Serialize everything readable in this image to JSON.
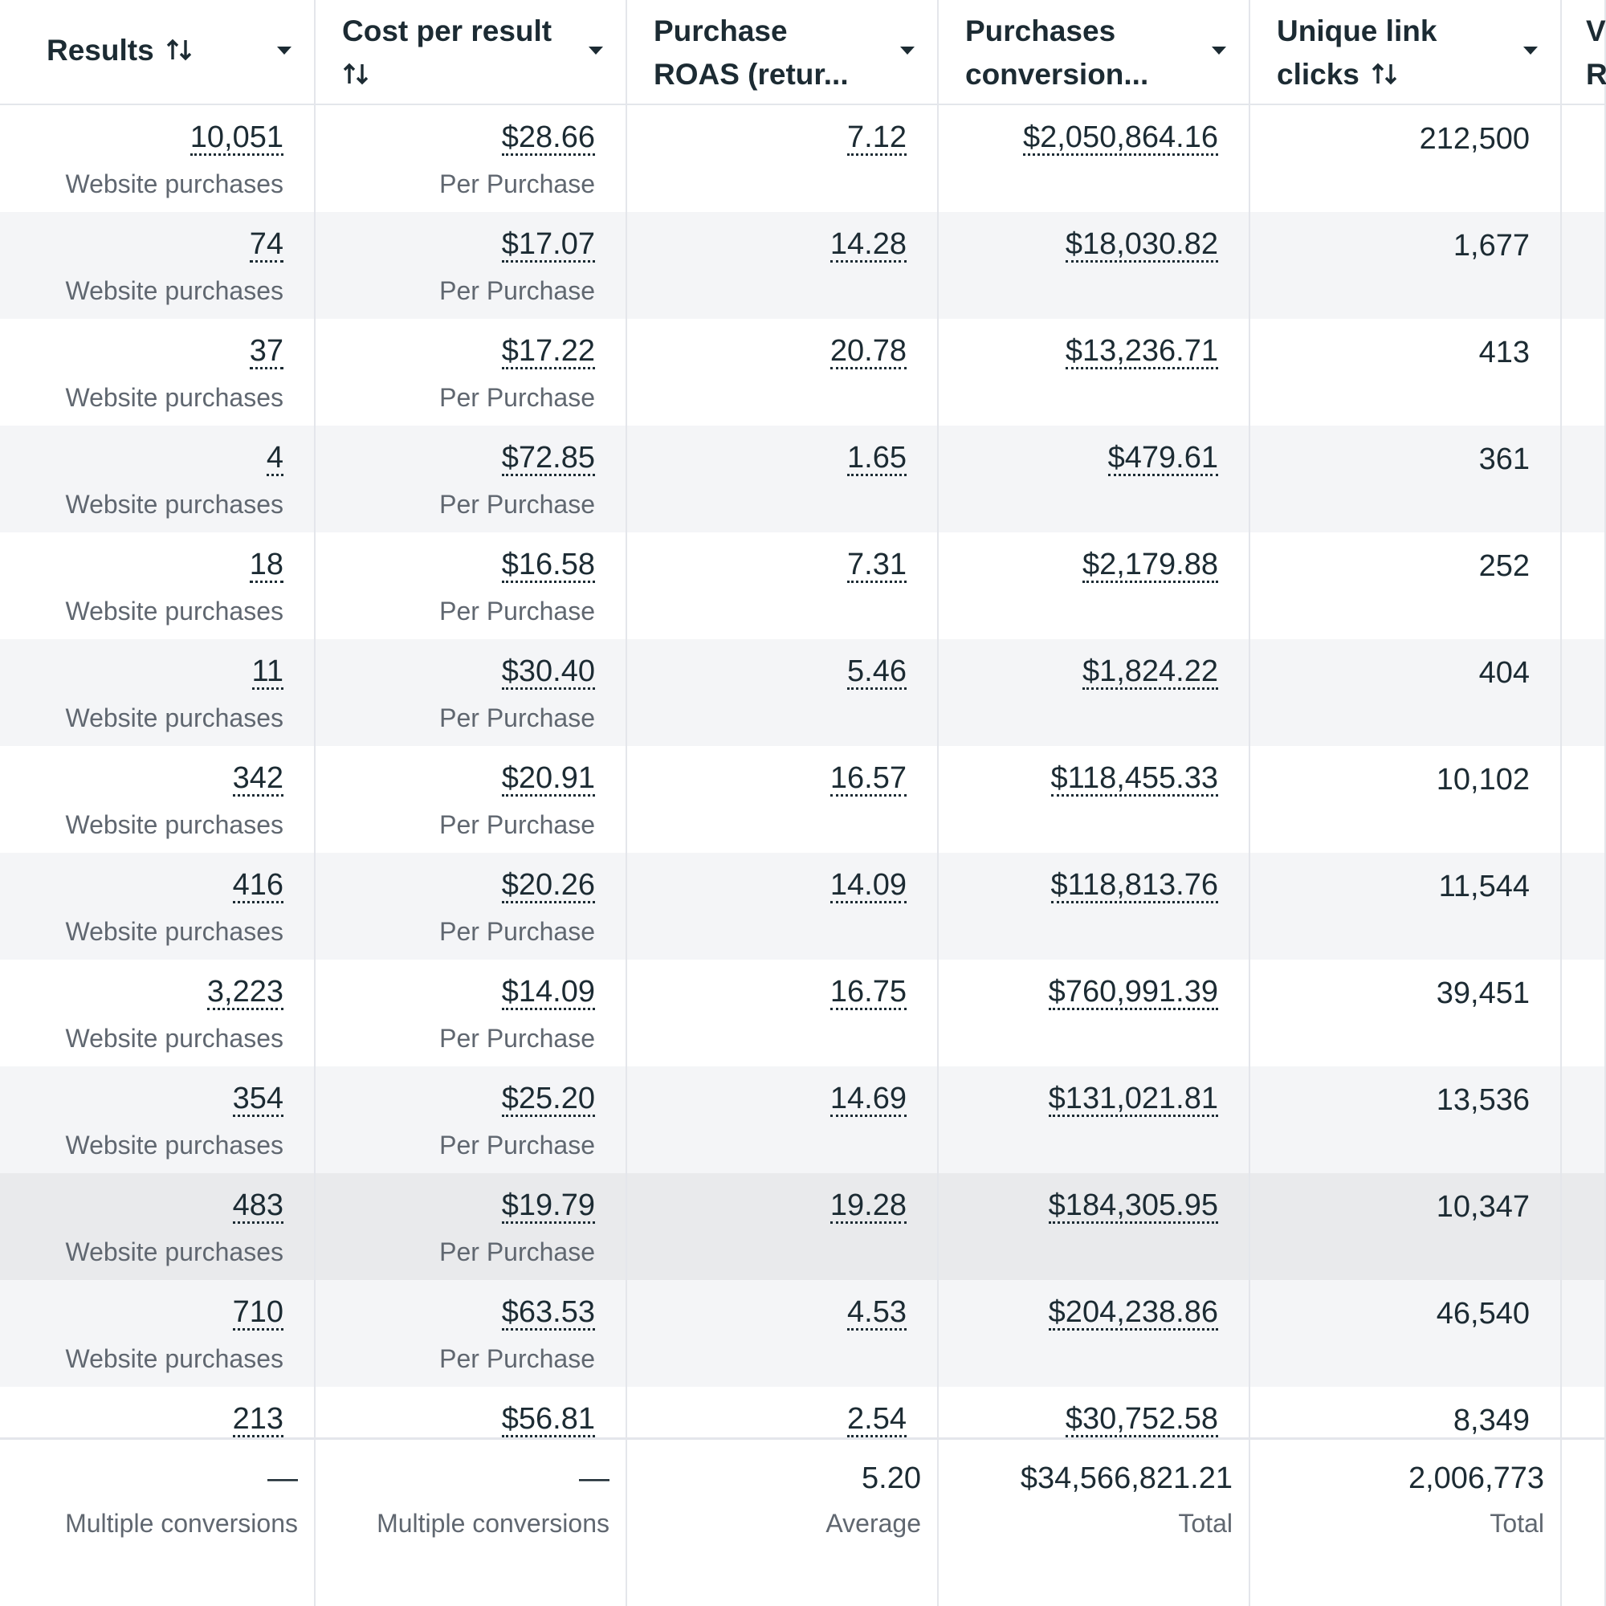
{
  "header": {
    "columns": [
      {
        "lines": [
          "Results"
        ],
        "sortable": true,
        "dropdown": true
      },
      {
        "lines": [
          "Cost per result"
        ],
        "sortable": true,
        "dropdown": true
      },
      {
        "lines": [
          "Purchase",
          "ROAS (retur..."
        ],
        "sortable": false,
        "dropdown": true
      },
      {
        "lines": [
          "Purchases",
          "conversion..."
        ],
        "sortable": false,
        "dropdown": true
      },
      {
        "lines": [
          "Unique link",
          "clicks"
        ],
        "sortable": true,
        "dropdown": true
      },
      {
        "lines": [
          "V",
          "R"
        ],
        "sortable": false,
        "dropdown": false
      }
    ]
  },
  "table": {
    "rows": [
      {
        "results": "10,051",
        "results_label": "Website purchases",
        "cost": "$28.66",
        "cost_label": "Per Purchase",
        "roas": "7.12",
        "conversion_value": "$2,050,864.16",
        "unique_link_clicks": "212,500"
      },
      {
        "results": "74",
        "results_label": "Website purchases",
        "cost": "$17.07",
        "cost_label": "Per Purchase",
        "roas": "14.28",
        "conversion_value": "$18,030.82",
        "unique_link_clicks": "1,677"
      },
      {
        "results": "37",
        "results_label": "Website purchases",
        "cost": "$17.22",
        "cost_label": "Per Purchase",
        "roas": "20.78",
        "conversion_value": "$13,236.71",
        "unique_link_clicks": "413"
      },
      {
        "results": "4",
        "results_label": "Website purchases",
        "cost": "$72.85",
        "cost_label": "Per Purchase",
        "roas": "1.65",
        "conversion_value": "$479.61",
        "unique_link_clicks": "361"
      },
      {
        "results": "18",
        "results_label": "Website purchases",
        "cost": "$16.58",
        "cost_label": "Per Purchase",
        "roas": "7.31",
        "conversion_value": "$2,179.88",
        "unique_link_clicks": "252"
      },
      {
        "results": "11",
        "results_label": "Website purchases",
        "cost": "$30.40",
        "cost_label": "Per Purchase",
        "roas": "5.46",
        "conversion_value": "$1,824.22",
        "unique_link_clicks": "404"
      },
      {
        "results": "342",
        "results_label": "Website purchases",
        "cost": "$20.91",
        "cost_label": "Per Purchase",
        "roas": "16.57",
        "conversion_value": "$118,455.33",
        "unique_link_clicks": "10,102"
      },
      {
        "results": "416",
        "results_label": "Website purchases",
        "cost": "$20.26",
        "cost_label": "Per Purchase",
        "roas": "14.09",
        "conversion_value": "$118,813.76",
        "unique_link_clicks": "11,544"
      },
      {
        "results": "3,223",
        "results_label": "Website purchases",
        "cost": "$14.09",
        "cost_label": "Per Purchase",
        "roas": "16.75",
        "conversion_value": "$760,991.39",
        "unique_link_clicks": "39,451"
      },
      {
        "results": "354",
        "results_label": "Website purchases",
        "cost": "$25.20",
        "cost_label": "Per Purchase",
        "roas": "14.69",
        "conversion_value": "$131,021.81",
        "unique_link_clicks": "13,536"
      },
      {
        "results": "483",
        "results_label": "Website purchases",
        "cost": "$19.79",
        "cost_label": "Per Purchase",
        "roas": "19.28",
        "conversion_value": "$184,305.95",
        "unique_link_clicks": "10,347"
      },
      {
        "results": "710",
        "results_label": "Website purchases",
        "cost": "$63.53",
        "cost_label": "Per Purchase",
        "roas": "4.53",
        "conversion_value": "$204,238.86",
        "unique_link_clicks": "46,540"
      },
      {
        "results": "213",
        "cost": "$56.81",
        "roas": "2.54",
        "conversion_value": "$30,752.58",
        "unique_link_clicks": "8,349"
      }
    ]
  },
  "footer": {
    "cells": [
      {
        "value": "—",
        "label": "Multiple conversions"
      },
      {
        "value": "—",
        "label": "Multiple conversions"
      },
      {
        "value": "5.20",
        "label": "Average"
      },
      {
        "value": "$34,566,821.21",
        "label": "Total"
      },
      {
        "value": "2,006,773",
        "label": "Total"
      }
    ]
  }
}
